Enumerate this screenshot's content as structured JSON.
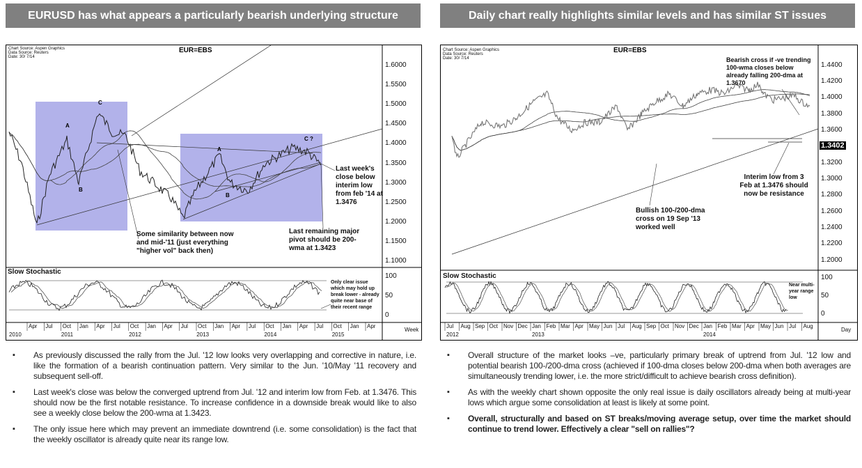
{
  "left": {
    "title": "EURUSD has what appears a particularly bearish underlying structure",
    "source": [
      "Chart Source: Aspen Graphics",
      "Data Source: Reuters",
      "Date: 30/ 7/14"
    ],
    "ticker": "EUR=EBS",
    "y_labels": [
      "1.6000",
      "1.5500",
      "1.5000",
      "1.4500",
      "1.4000",
      "1.3500",
      "1.3000",
      "1.2500",
      "1.2000",
      "1.1500",
      "1.1000"
    ],
    "wave_labels": [
      "A",
      "B",
      "C",
      "A",
      "B",
      "C ?"
    ],
    "annotations": {
      "close": "Last week's close below interim low from feb '14 at 1.3476",
      "similarity": "Some similarity between now and mid-'11 (just everything \"higher vol\" back then)",
      "pivot": "Last remaining major pivot should be 200-wma at 1.3423",
      "osc": "Only clear issue which may hold up break lower - already quite near base of their recent range"
    },
    "osc_title": "Slow Stochastic",
    "osc_labels": [
      "100",
      "50",
      "0"
    ],
    "months": [
      "Apr",
      "Jul",
      "Oct",
      "Jan",
      "Apr",
      "Jul",
      "Oct",
      "Jan",
      "Apr",
      "Jul",
      "Oct",
      "Jan",
      "Apr",
      "Jul",
      "Oct",
      "Jan",
      "Apr",
      "Jul",
      "Oct",
      "Jan",
      "Apr"
    ],
    "years": [
      "2010",
      "2011",
      "2012",
      "2013",
      "2014",
      "2015"
    ],
    "period": "Week"
  },
  "right": {
    "title": "Daily chart really highlights similar levels and has similar ST issues",
    "source": [
      "Chart Source: Aspen Graphics",
      "Data Source: Reuters",
      "Date: 30/ 7/14"
    ],
    "ticker": "EUR=EBS",
    "y_labels": [
      "1.4400",
      "1.4200",
      "1.4000",
      "1.3800",
      "1.3600",
      "1.3200",
      "1.3000",
      "1.2800",
      "1.2600",
      "1.2400",
      "1.2200",
      "1.2000"
    ],
    "last_price": "1.3402",
    "annotations": {
      "bearish": "Bearish cross if -ve trending 100-wma closes below already falling 200-dma at 1.3670",
      "interim": "Interim low from 3 Feb at 1.3476 should now be resistance",
      "bullish": "Bullish 100-/200-dma cross on 19 Sep '13 worked well",
      "osc": "Near multi-year range low"
    },
    "osc_title": "Slow Stochastic",
    "osc_labels": [
      "100",
      "50",
      "0"
    ],
    "months": [
      "Jul",
      "Aug",
      "Sep",
      "Oct",
      "Nov",
      "Dec",
      "Jan",
      "Feb",
      "Mar",
      "Apr",
      "May",
      "Jun",
      "Jul",
      "Aug",
      "Sep",
      "Oct",
      "Nov",
      "Dec",
      "Jan",
      "Feb",
      "Mar",
      "Apr",
      "May",
      "Jun",
      "Jul",
      "Aug"
    ],
    "years": [
      "2012",
      "2013",
      "2014"
    ],
    "period": "Day"
  },
  "bullets_left": [
    "As previously discussed the rally from the Jul. '12 low looks very overlapping and corrective in nature, i.e. like the formation of a bearish continuation pattern. Very similar to the Jun. '10/May '11 recovery and subsequent sell-off.",
    "Last week's close was below the converged uptrend from Jul. '12 and interim low from Feb. at 1.3476. This should now be the first notable resistance. To increase confidence in a downside break would like to also see a weekly close below the 200-wma at 1.3423.",
    "The only issue here which may prevent an immediate downtrend (i.e. some consolidation) is the fact that the weekly oscillator is already quite near its range low."
  ],
  "bullets_right": [
    "Overall structure of the market looks –ve, particularly primary break of uptrend from Jul. '12 low and potential bearish 100-/200-dma cross (achieved if 100-dma closes below 200-dma when both averages are simultaneously trending lower, i.e. the more strict/difficult to achieve bearish cross definition).",
    "As with the weekly chart shown opposite the only real issue is daily oscillators already being at multi-year lows which argue some consolidation at least is likely at some point.",
    "Overall, structurally and based on ST breaks/moving average setup, over time the market should continue to trend lower. Effectively a clear \"sell on rallies\"?"
  ]
}
